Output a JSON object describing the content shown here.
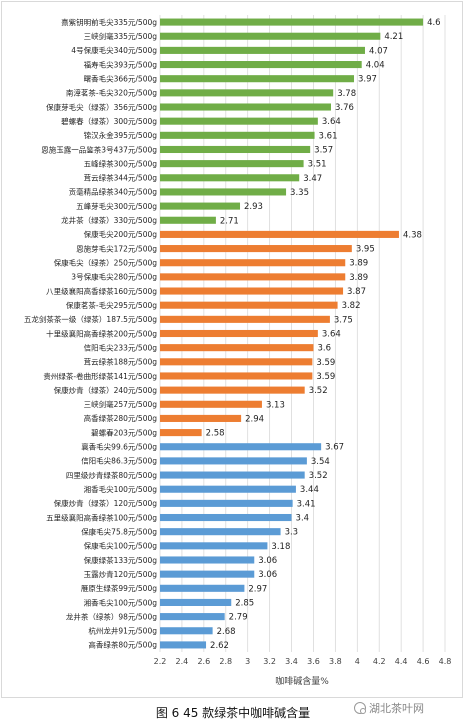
{
  "caption": "图 6  45 款绿茶中咖啡碱含量",
  "watermark": "湖北茶叶网",
  "chart_data": {
    "type": "bar",
    "orientation": "horizontal",
    "xlabel": "咖啡碱含量%",
    "xlim": [
      2.2,
      4.8
    ],
    "xticks": [
      "2.2",
      "2.4",
      "2.6",
      "2.8",
      "3",
      "3.2",
      "3.4",
      "3.6",
      "3.8",
      "4",
      "4.2",
      "4.4",
      "4.6",
      "4.8"
    ],
    "grid": true,
    "categories": [
      "熹紫钥明前毛尖335元/500g",
      "三峡剑毫335元/500g",
      "4号保康毛尖340元/500g",
      "福寿毛尖393元/500g",
      "曙香毛尖366元/500g",
      "南漳茗茶-毛尖320元/500g",
      "保康芽毛尖（绿茶）356元/500g",
      "碧螺春（绿茶）300元/500g",
      "锦汉永金395元/500g",
      "恩施玉露一品鉴茶3号437元/500g",
      "五峰绿茶300元/500g",
      "茸云绿茶344元/500g",
      "贡毫精品绿茶340元/500g",
      "五峰芽毛尖300元/500g",
      "龙井茶（绿茶）330元/500g",
      "保康毛尖200元/500g",
      "恩施芽毛尖172元/500g",
      "保康毛尖（绿茶）250元/500g",
      "3号保康毛尖280元/500g",
      "八里级襄阳高香绿茶160元/500g",
      "保康茗茶-毛尖295元/500g",
      "五龙剑茶茶一级（绿茶）187.5元/500g",
      "十里级襄阳高香绿茶200元/500g",
      "信阳毛尖233元/500g",
      "茸云绿茶188元/500g",
      "贵州绿茶-卷曲形绿茶141元/500g",
      "保康炒青（绿茶）240元/500g",
      "三峡剑毫257元/500g",
      "高香绿茶280元/500g",
      "碧螺春203元/500g",
      "襄香毛尖99.6元/500g",
      "信阳毛尖86.3元/500g",
      "四里级炒青绿茶80元/500g",
      "湘香毛尖100元/500g",
      "保康炒青（绿茶）120元/500g",
      "五里级襄阳高香绿茶100元/500g",
      "保康毛尖75.8元/500g",
      "保康毛尖100元/500g",
      "保康绿茶133元/500g",
      "玉露炒青120元/500g",
      "雁原生绿茶99元/500g",
      "湘香毛尖100元/500g",
      "龙井茶（绿茶）98元/500g",
      "杭州龙井91元/500g",
      "高香绿茶80元/500g"
    ],
    "values": [
      4.6,
      4.21,
      4.07,
      4.04,
      3.97,
      3.78,
      3.76,
      3.64,
      3.61,
      3.57,
      3.51,
      3.47,
      3.35,
      2.93,
      2.71,
      4.38,
      3.95,
      3.89,
      3.89,
      3.87,
      3.82,
      3.75,
      3.64,
      3.6,
      3.59,
      3.59,
      3.52,
      3.13,
      2.94,
      2.58,
      3.67,
      3.54,
      3.52,
      3.44,
      3.41,
      3.4,
      3.3,
      3.18,
      3.06,
      3.06,
      2.97,
      2.85,
      2.79,
      2.68,
      2.62
    ],
    "value_labels": [
      "4.6",
      "4.21",
      "4.07",
      "4.04",
      "3.97",
      "3.78",
      "3.76",
      "3.64",
      "3.61",
      "3.57",
      "3.51",
      "3.47",
      "3.35",
      "2.93",
      "2.71",
      "4.38",
      "3.95",
      "3.89",
      "3.89",
      "3.87",
      "3.82",
      "3.75",
      "3.64",
      "3.6",
      "3.59",
      "3.59",
      "3.52",
      "3.13",
      "2.94",
      "2.58",
      "3.67",
      "3.54",
      "3.52",
      "3.44",
      "3.41",
      "3.4",
      "3.3",
      "3.18",
      "3.06",
      "3.06",
      "2.97",
      "2.85",
      "2.79",
      "2.68",
      "2.62"
    ],
    "groups": [
      {
        "start": 0,
        "end": 14,
        "color": "#70ad47"
      },
      {
        "start": 15,
        "end": 29,
        "color": "#ed7d31"
      },
      {
        "start": 30,
        "end": 44,
        "color": "#5b9bd5"
      }
    ]
  }
}
